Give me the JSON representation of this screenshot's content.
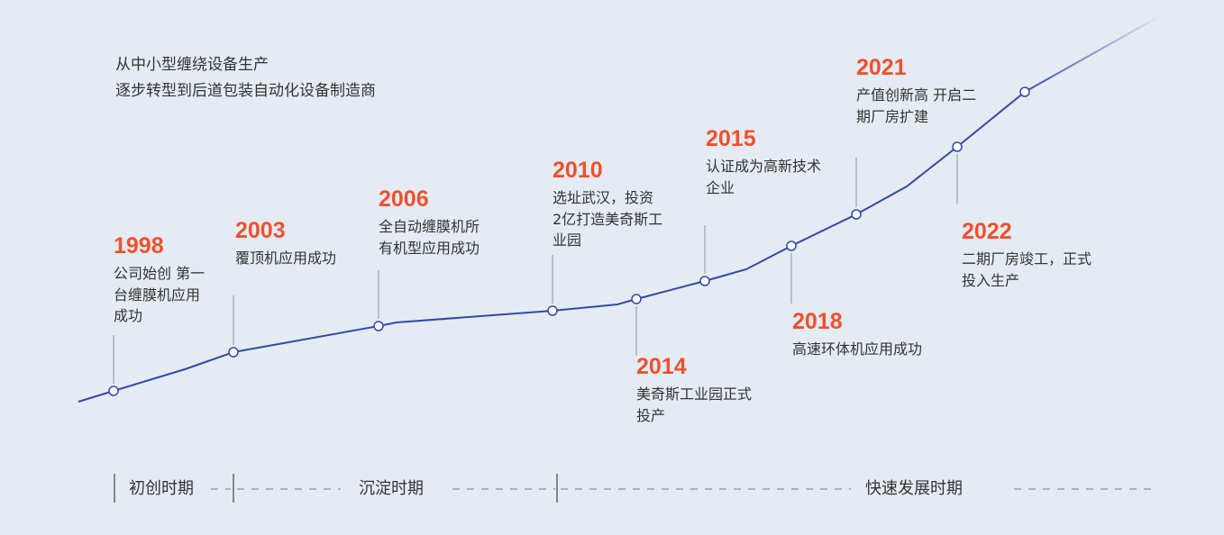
{
  "intro": {
    "line1": "从中小型缠绕设备生产",
    "line2": "逐步转型到后道包装自动化设备制造商"
  },
  "colors": {
    "line": "#3349a8",
    "year": "#f0502f",
    "stem": "#a9b1c0",
    "background": "#e5ebf3"
  },
  "milestones": [
    {
      "year": "1998",
      "desc": "公司始创 第一\n台缠膜机应用\n成功"
    },
    {
      "year": "2003",
      "desc": "覆顶机应用成功"
    },
    {
      "year": "2006",
      "desc": "全自动缠膜机所\n有机型应用成功"
    },
    {
      "year": "2010",
      "desc": "选址武汉，投资\n2亿打造美奇斯工\n业园"
    },
    {
      "year": "2014",
      "desc": "美奇斯工业园正式\n投产"
    },
    {
      "year": "2015",
      "desc": "认证成为高新技术\n企业"
    },
    {
      "year": "2018",
      "desc": "高速环体机应用成功"
    },
    {
      "year": "2021",
      "desc": "产值创新高 开启二\n期厂房扩建"
    },
    {
      "year": "2022",
      "desc": "二期厂房竣工，正式\n投入生产"
    }
  ],
  "phases": [
    "初创时期",
    "沉淀时期",
    "快速发展时期"
  ]
}
